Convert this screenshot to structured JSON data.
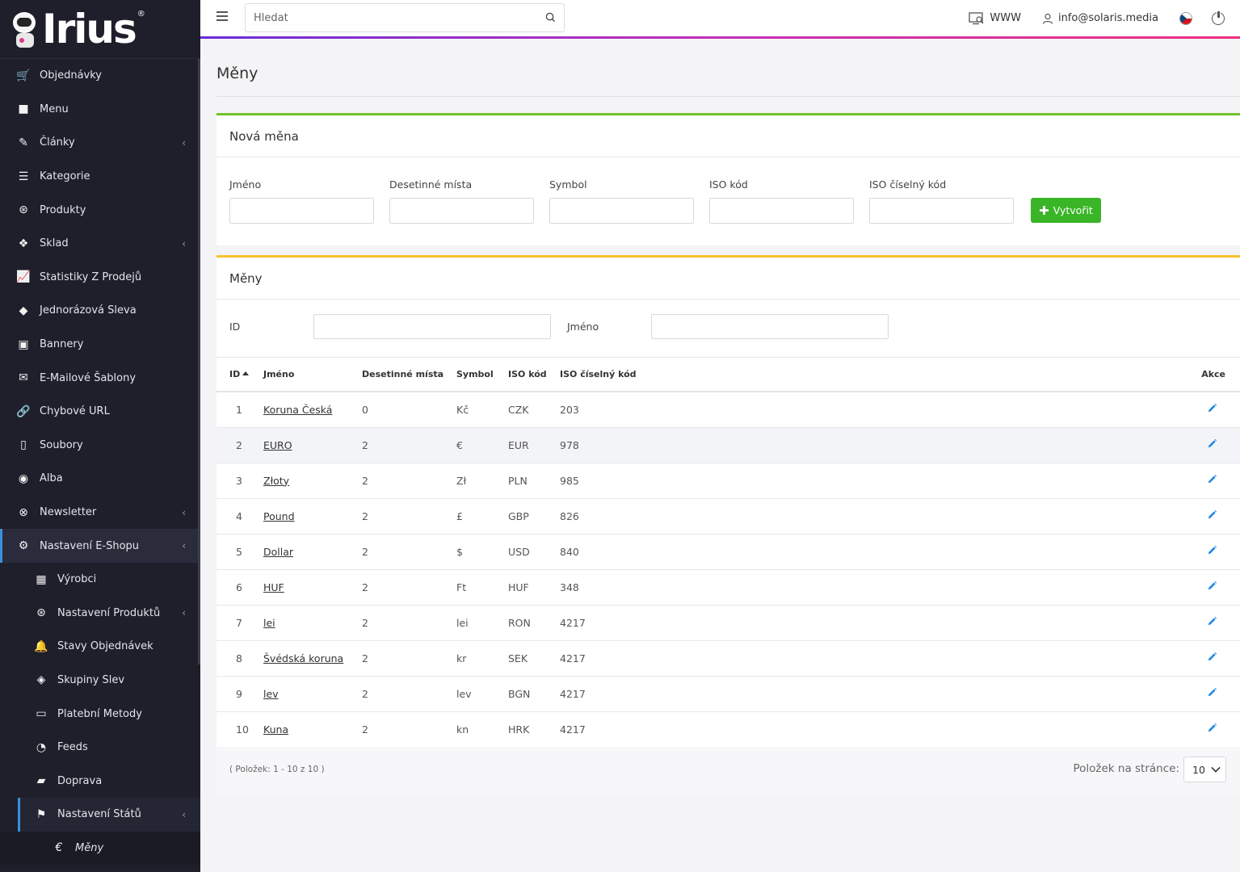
{
  "brand": {
    "logo_text": "Irius",
    "reg_mark": "®"
  },
  "sidebar": {
    "items": [
      {
        "label": "Objednávky",
        "icon": "cart-icon",
        "glyph": "🛒",
        "chevron": false
      },
      {
        "label": "Menu",
        "icon": "folder-icon",
        "glyph": "■",
        "chevron": false
      },
      {
        "label": "Články",
        "icon": "pencil-icon",
        "glyph": "✎",
        "chevron": true
      },
      {
        "label": "Kategorie",
        "icon": "list-icon",
        "glyph": "☰",
        "chevron": false
      },
      {
        "label": "Produkty",
        "icon": "ball-icon",
        "glyph": "⊛",
        "chevron": false
      },
      {
        "label": "Sklad",
        "icon": "dropbox-icon",
        "glyph": "❖",
        "chevron": true
      },
      {
        "label": "Statistiky Z Prodejů",
        "icon": "chart-icon",
        "glyph": "📈",
        "chevron": false
      },
      {
        "label": "Jednorázová Sleva",
        "icon": "tag-icon",
        "glyph": "◆",
        "chevron": false
      },
      {
        "label": "Bannery",
        "icon": "image-icon",
        "glyph": "▣",
        "chevron": false
      },
      {
        "label": "E-Mailové Šablony",
        "icon": "envelope-icon",
        "glyph": "✉",
        "chevron": false
      },
      {
        "label": "Chybové URL",
        "icon": "link-icon",
        "glyph": "🔗",
        "chevron": false
      },
      {
        "label": "Soubory",
        "icon": "file-icon",
        "glyph": "▯",
        "chevron": false
      },
      {
        "label": "Alba",
        "icon": "camera-icon",
        "glyph": "◉",
        "chevron": false
      },
      {
        "label": "Newsletter",
        "icon": "mail-circle-icon",
        "glyph": "⊗",
        "chevron": true
      },
      {
        "label": "Nastavení E-Shopu",
        "icon": "cogs-icon",
        "glyph": "⚙",
        "chevron": true,
        "active": true
      }
    ],
    "sub_items": [
      {
        "label": "Výrobci",
        "icon": "building-icon",
        "glyph": "▦",
        "chevron": false
      },
      {
        "label": "Nastavení Produktů",
        "icon": "ball-icon",
        "glyph": "⊛",
        "chevron": true
      },
      {
        "label": "Stavy Objednávek",
        "icon": "bell-icon",
        "glyph": "🔔",
        "chevron": false
      },
      {
        "label": "Skupiny Slev",
        "icon": "tags-icon",
        "glyph": "◈",
        "chevron": false
      },
      {
        "label": "Platební Metody",
        "icon": "credit-card-icon",
        "glyph": "▭",
        "chevron": false
      },
      {
        "label": "Feeds",
        "icon": "feed-icon",
        "glyph": "◔",
        "chevron": false
      },
      {
        "label": "Doprava",
        "icon": "truck-icon",
        "glyph": "▰",
        "chevron": false
      },
      {
        "label": "Nastavení Států",
        "icon": "flag-icon",
        "glyph": "⚑",
        "chevron": true,
        "active": true
      }
    ],
    "sub_sub_items": [
      {
        "label": "Měny",
        "icon": "euro-icon",
        "glyph": "€"
      }
    ]
  },
  "topbar": {
    "search_placeholder": "Hledat",
    "www_label": "WWW",
    "user_email": "info@solaris.media"
  },
  "page": {
    "title": "Měny"
  },
  "new_currency": {
    "header": "Nová měna",
    "fields": [
      {
        "label": "Jméno",
        "value": ""
      },
      {
        "label": "Desetinné místa",
        "value": ""
      },
      {
        "label": "Symbol",
        "value": ""
      },
      {
        "label": "ISO kód",
        "value": ""
      },
      {
        "label": "ISO číselný kód",
        "value": ""
      }
    ],
    "create_label": "Vytvořit",
    "accent": "#72c02c"
  },
  "currencies": {
    "header": "Měny",
    "accent": "#f7c22e",
    "filters": {
      "id_label": "ID",
      "id_value": "",
      "name_label": "Jméno",
      "name_value": ""
    },
    "columns": {
      "id": "ID",
      "name": "Jméno",
      "decimals": "Desetinné místa",
      "symbol": "Symbol",
      "iso": "ISO kód",
      "iso_num": "ISO číselný kód",
      "actions": "Akce"
    },
    "rows": [
      {
        "id": "1",
        "name": "Koruna Česká",
        "decimals": "0",
        "symbol": "Kč",
        "iso": "CZK",
        "iso_num": "203"
      },
      {
        "id": "2",
        "name": "EURO",
        "decimals": "2",
        "symbol": "€",
        "iso": "EUR",
        "iso_num": "978"
      },
      {
        "id": "3",
        "name": "Złoty",
        "decimals": "2",
        "symbol": "Zł",
        "iso": "PLN",
        "iso_num": "985"
      },
      {
        "id": "4",
        "name": "Pound",
        "decimals": "2",
        "symbol": "£",
        "iso": "GBP",
        "iso_num": "826"
      },
      {
        "id": "5",
        "name": "Dollar",
        "decimals": "2",
        "symbol": "$",
        "iso": "USD",
        "iso_num": "840"
      },
      {
        "id": "6",
        "name": "HUF",
        "decimals": "2",
        "symbol": "Ft",
        "iso": "HUF",
        "iso_num": "348"
      },
      {
        "id": "7",
        "name": "lei",
        "decimals": "2",
        "symbol": "lei",
        "iso": "RON",
        "iso_num": "4217"
      },
      {
        "id": "8",
        "name": "Švédská koruna",
        "decimals": "2",
        "symbol": "kr",
        "iso": "SEK",
        "iso_num": "4217"
      },
      {
        "id": "9",
        "name": "lev",
        "decimals": "2",
        "symbol": "lev",
        "iso": "BGN",
        "iso_num": "4217"
      },
      {
        "id": "10",
        "name": "Kuna",
        "decimals": "2",
        "symbol": "kn",
        "iso": "HRK",
        "iso_num": "4217"
      }
    ],
    "footer_info": "( Položek: 1 - 10 z 10 )",
    "per_page_label": "Položek na stránce:",
    "per_page_value": "10"
  }
}
